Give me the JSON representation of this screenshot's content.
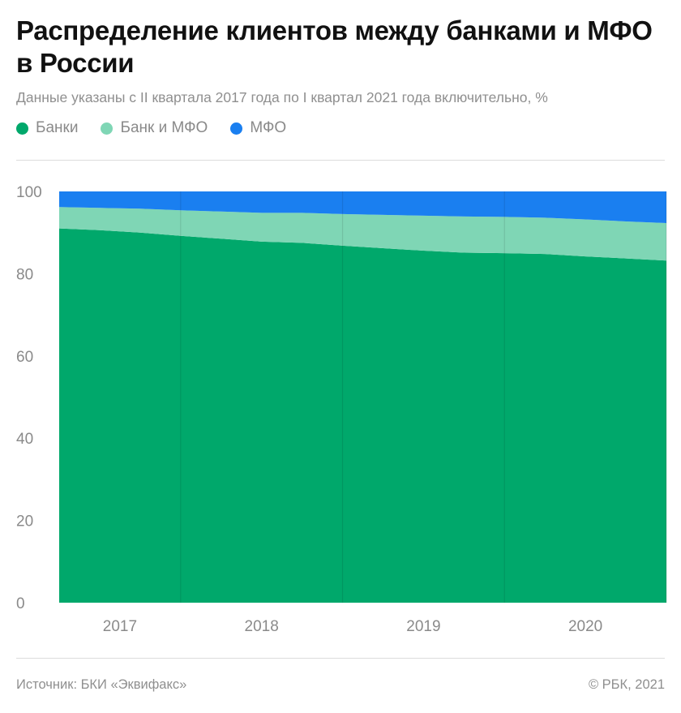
{
  "header": {
    "title": "Распределение клиентов между банками и МФО в России",
    "subtitle": "Данные указаны с II квартала 2017 года по I квартал 2021 года включительно, %"
  },
  "legend": [
    {
      "label": "Банки",
      "color": "#00a86b"
    },
    {
      "label": "Банк и МФО",
      "color": "#7fd6b5"
    },
    {
      "label": "МФО",
      "color": "#1a7ff0"
    }
  ],
  "chart_data": {
    "type": "area",
    "stacked": true,
    "x": [
      "2017Q2",
      "2017Q3",
      "2017Q4",
      "2018Q1",
      "2018Q2",
      "2018Q3",
      "2018Q4",
      "2019Q1",
      "2019Q2",
      "2019Q3",
      "2019Q4",
      "2020Q1",
      "2020Q2",
      "2020Q3",
      "2020Q4",
      "2021Q1"
    ],
    "x_tick_labels": [
      "2017",
      "2018",
      "2019",
      "2020"
    ],
    "series": [
      {
        "name": "Банки",
        "color": "#00a86b",
        "values": [
          91.0,
          90.6,
          90.0,
          89.2,
          88.5,
          87.8,
          87.5,
          86.8,
          86.2,
          85.6,
          85.1,
          85.0,
          84.8,
          84.2,
          83.7,
          83.2
        ]
      },
      {
        "name": "Банк и МФО",
        "color": "#7fd6b5",
        "values": [
          5.2,
          5.4,
          5.8,
          6.2,
          6.6,
          7.0,
          7.3,
          7.7,
          8.1,
          8.5,
          8.8,
          8.8,
          8.8,
          9.0,
          9.0,
          9.1
        ]
      },
      {
        "name": "МФО",
        "color": "#1a7ff0",
        "values": [
          3.8,
          4.0,
          4.2,
          4.6,
          4.9,
          5.2,
          5.2,
          5.5,
          5.7,
          5.9,
          6.1,
          6.2,
          6.4,
          6.8,
          7.3,
          7.7
        ]
      }
    ],
    "ylim": [
      0,
      100
    ],
    "yticks": [
      0,
      20,
      40,
      60,
      80,
      100
    ],
    "grid": "vertical year separators"
  },
  "footer": {
    "source": "Источник: БКИ «Эквифакс»",
    "copyright": "© РБК, 2021"
  }
}
